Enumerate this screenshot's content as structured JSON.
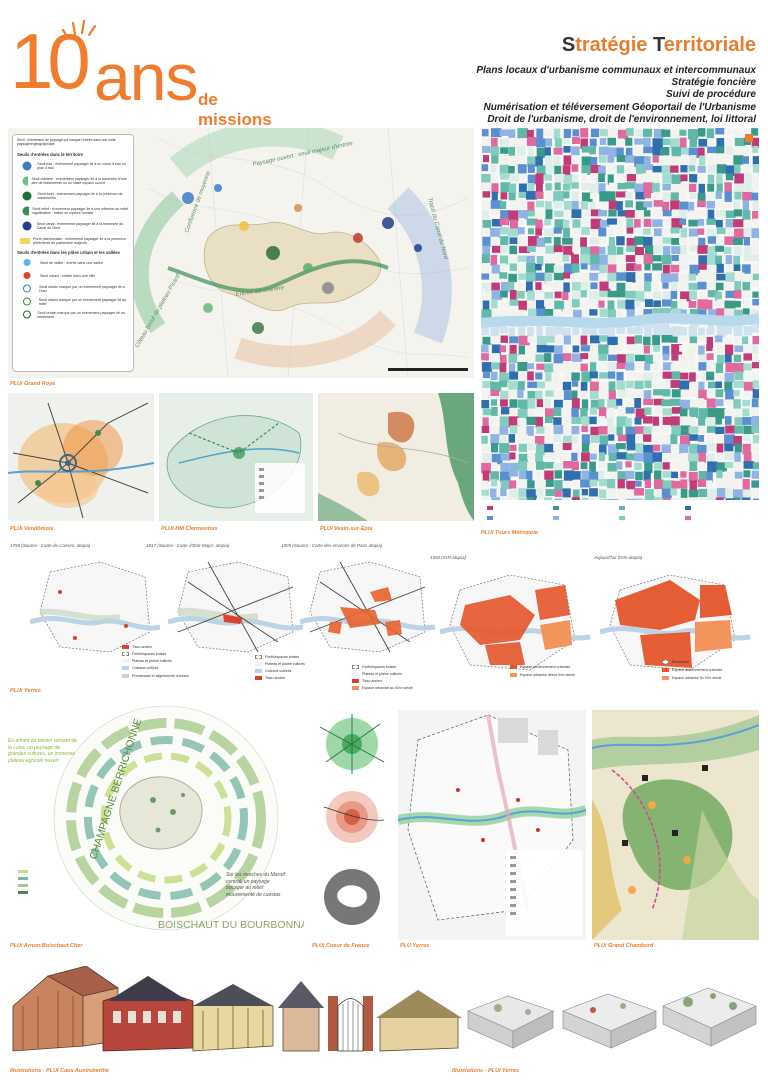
{
  "header": {
    "logo_number": "10",
    "logo_word": "ans",
    "logo_sub": "de missions",
    "title": "Stratégie Territoriale",
    "subtitles": [
      "Plans locaux d'urbanisme communaux et intercommunaux",
      "Stratégie foncière",
      "Suivi de procédure",
      "Numérisation et téléversement Géoportail de l'Urbanisme",
      "Droit de l'urbanisme, droit de l'environnement, loi littoral"
    ]
  },
  "colors": {
    "accent": "#ef7d2d",
    "title_dark": "#333333",
    "green": "#2f8f4e",
    "blue": "#3f73b5",
    "red": "#d9422c"
  },
  "legend_roye": {
    "note": "Seuil : évènement de paysage qui marque l'entrée dans une unité paysagère/géographique",
    "section1": "Seuils d'entrées dans le territoire",
    "items1": [
      "Seuil eau : évènement paysager lié à un cours d'eau ou plan d'eau",
      "Seuil clairière : évènement paysager lié à la traversée d'une aire de boisements ou un vaste espace ouvert",
      "Seuil forêt : évènement paysager lié à la présence de boisements",
      "Seuil relief : évènement paysager lié à une inflexion du relief significative : vallon ou rupture humide",
      "Seuil canal : évènement paysager lié à la traversée du Canal du Nord",
      "Porte patrimoniale : évènement paysager lié à la présence d'éléments de patrimoine majeurs"
    ],
    "section2": "Seuils d'entrées dans les pôles urbain et les vallées",
    "items2": [
      "Seuil de vallée : entrée dans une vallée",
      "Seuil urbain : entrée dans une ville",
      "Seuil urbain marqué par un évènement paysager lié à l'eau",
      "Seuil urbain marqué par un évènement paysager lié au relief",
      "Seuil urbain marqué par un évènement paysager lié au boisement"
    ]
  },
  "roye_map_labels": [
    "Entrée de clairière",
    "Côteau boisé du plateau Picard",
    "Confluence de moyenne",
    "Paysage ouvert : seuil majeur d'entrée",
    "Tracé du Canal du Nord"
  ],
  "captions": {
    "roye": "PLUi Grand Roye",
    "tours": "PLUi Tours Métropole",
    "vendomois": "PLUi Vendômois",
    "clermontois": "PLUi-HM Clermontois",
    "vexin": "PLUi Vexin-sur-Epte",
    "yerres_history": "PLUi Yerres",
    "arnon": "PLUi Arnon-Boischaut Cher",
    "coeur": "PLUi Coeur de France",
    "yerres_plan": "PLU  Yerres",
    "chambord": "PLUi Grand Chambord",
    "illus_left": "Illustrations - PLUi Caux Austreberthe",
    "illus_right": "Illustrations - PLUi Yerres"
  },
  "timeline": {
    "titles": [
      "1756 (Source : Carte de Cassini; atopia)",
      "1817 (Source : Carte d'État-Major; atopia)",
      "1905 (Source : Carte des environs de Paris atopia)",
      "1950 (IGN-atopia)",
      "Aujourd'hui (IGN-atopia)"
    ],
    "legend1": [
      "Tissu ancien",
      "Forêt/espaces boisés",
      "Plateau et plaine cultivés",
      "Coteaux cultivés",
      "Promenade et alignements d'arbres"
    ],
    "legend2": [
      "Forêt/espaces boisés",
      "Plateau et plaine cultivés",
      "Coteaux cultivés",
      "Tissu ancien"
    ],
    "legend3": [
      "Forêt/espaces boisés",
      "Plateau et plaine cultivés",
      "Tissu ancien",
      "Espace urbanisé au XIXe siècle"
    ],
    "legend4": [
      "Espace anciennement urbanisé",
      "Espace urbanisé début XXe siècle"
    ],
    "legend5": [
      "Boisement",
      "Espace anciennement urbanisé",
      "Espace urbanisé fin XXe siècle"
    ]
  },
  "arnon": {
    "left_note": "En amont du bassin versant de la Loire, un paysage de grandes cultures, un immense plateau agricole ouvert",
    "right_note": "Sur les marches du Massif central, un paysage bocager au relief mouvementé de cuestas",
    "big_label_1": "CHAMPAGNE BERRICHONNE",
    "big_label_2": "BOISCHAUT DU BOURBONNAIS"
  }
}
